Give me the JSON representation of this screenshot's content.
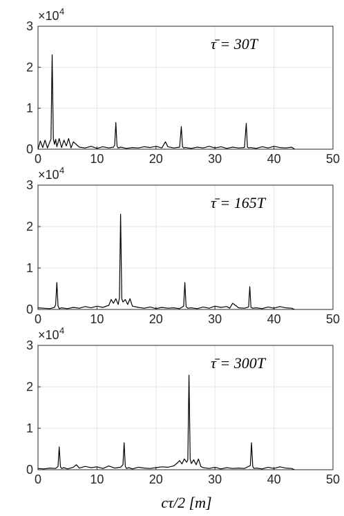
{
  "xlabel": "cτ/2 [m]",
  "chart_data": [
    {
      "type": "line",
      "annotation": "τ̄ = 30T",
      "ylim": [
        0,
        30000
      ],
      "xlim": [
        0,
        50
      ],
      "y_exponent_label": "×10",
      "y_exponent": "4",
      "yticks": [
        "0",
        "1",
        "2",
        "3"
      ],
      "xticks": [
        "0",
        "10",
        "20",
        "30",
        "40",
        "50"
      ],
      "grid": true,
      "series": [
        {
          "x": [
            0,
            0.4,
            0.8,
            1.2,
            1.6,
            2.0,
            2.2,
            2.4,
            2.6,
            2.8,
            3.0,
            3.2,
            3.6,
            4.0,
            4.4,
            4.8,
            5.2,
            5.6,
            6.0,
            7,
            8,
            9,
            10,
            11,
            12,
            12.8,
            13.0,
            13.2,
            13.4,
            13.6,
            14,
            15,
            16,
            17,
            18,
            19,
            20,
            21,
            21.6,
            22,
            23,
            24,
            24.3,
            24.5,
            24.7,
            25,
            26,
            27,
            28,
            29,
            30,
            31,
            32,
            33,
            34,
            35,
            35.3,
            35.5,
            35.7,
            36,
            37,
            38,
            39,
            40,
            41,
            42,
            43,
            43.5
          ],
          "y": [
            0,
            2000,
            400,
            2200,
            300,
            1800,
            2400,
            23000,
            2600,
            1200,
            2400,
            600,
            2600,
            400,
            2200,
            800,
            2600,
            300,
            1800,
            500,
            300,
            700,
            200,
            600,
            300,
            500,
            1000,
            6500,
            800,
            300,
            500,
            200,
            400,
            300,
            600,
            400,
            700,
            300,
            1800,
            600,
            300,
            500,
            5500,
            600,
            300,
            400,
            200,
            500,
            300,
            700,
            300,
            600,
            200,
            500,
            300,
            400,
            6300,
            500,
            300,
            400,
            200,
            600,
            300,
            700,
            400,
            300,
            500,
            0
          ]
        }
      ]
    },
    {
      "type": "line",
      "annotation": "τ̄ = 165T",
      "ylim": [
        0,
        30000
      ],
      "xlim": [
        0,
        50
      ],
      "y_exponent_label": "×10",
      "y_exponent": "4",
      "yticks": [
        "0",
        "1",
        "2",
        "3"
      ],
      "xticks": [
        "0",
        "10",
        "20",
        "30",
        "40",
        "50"
      ],
      "grid": true,
      "series": [
        {
          "x": [
            0,
            1,
            2,
            2.8,
            3.0,
            3.2,
            3.4,
            3.6,
            4,
            5,
            6,
            7,
            8,
            9,
            10,
            11,
            12,
            12.4,
            12.8,
            13.2,
            13.6,
            13.8,
            14.0,
            14.2,
            14.4,
            14.8,
            15.2,
            15.6,
            16,
            17,
            18,
            19,
            20,
            21,
            22,
            23,
            24,
            24.7,
            24.9,
            25.1,
            25.4,
            26,
            27,
            28,
            29,
            30,
            31,
            32,
            32.5,
            33,
            34,
            35,
            35.7,
            35.9,
            36.1,
            36.4,
            37,
            38,
            39,
            40,
            41,
            42,
            43,
            43.5
          ],
          "y": [
            400,
            300,
            200,
            500,
            1200,
            6500,
            900,
            200,
            400,
            200,
            500,
            300,
            700,
            400,
            800,
            500,
            1000,
            2400,
            1500,
            2600,
            1200,
            2800,
            23000,
            2600,
            1800,
            2400,
            1200,
            2600,
            800,
            500,
            300,
            600,
            200,
            500,
            300,
            400,
            200,
            800,
            6500,
            700,
            300,
            400,
            200,
            600,
            300,
            800,
            500,
            700,
            300,
            1500,
            400,
            300,
            600,
            5500,
            500,
            300,
            400,
            200,
            600,
            300,
            700,
            400,
            300,
            0
          ]
        }
      ]
    },
    {
      "type": "line",
      "annotation": "τ̄ = 300T",
      "ylim": [
        0,
        30000
      ],
      "xlim": [
        0,
        50
      ],
      "y_exponent_label": "×10",
      "y_exponent": "4",
      "yticks": [
        "0",
        "1",
        "2",
        "3"
      ],
      "xticks": [
        "0",
        "10",
        "20",
        "30",
        "40",
        "50"
      ],
      "grid": true,
      "series": [
        {
          "x": [
            0,
            1,
            2,
            3,
            3.4,
            3.6,
            3.8,
            4.0,
            4.4,
            5,
            6,
            6.5,
            7,
            8,
            9,
            10,
            11,
            12,
            13,
            14,
            14.4,
            14.6,
            14.8,
            15.0,
            15.4,
            16,
            17,
            18,
            19,
            20,
            21,
            22,
            23,
            23.6,
            24,
            24.4,
            24.8,
            25.2,
            25.4,
            25.6,
            25.8,
            26,
            26.4,
            26.8,
            27.2,
            27.6,
            28,
            29,
            30,
            31,
            32,
            33,
            34,
            35,
            36,
            36.2,
            36.4,
            36.6,
            37,
            38,
            39,
            40,
            41,
            42,
            43,
            43.5
          ],
          "y": [
            300,
            200,
            400,
            300,
            800,
            5500,
            700,
            300,
            500,
            200,
            600,
            1200,
            400,
            800,
            500,
            700,
            300,
            900,
            400,
            600,
            1200,
            6500,
            800,
            300,
            500,
            200,
            600,
            400,
            300,
            500,
            700,
            600,
            900,
            1600,
            2200,
            1400,
            2600,
            1800,
            2400,
            22800,
            2600,
            1500,
            2400,
            1200,
            2600,
            800,
            500,
            300,
            600,
            200,
            500,
            300,
            400,
            300,
            1000,
            6500,
            800,
            300,
            400,
            200,
            600,
            300,
            700,
            400,
            300,
            0
          ]
        }
      ]
    }
  ]
}
